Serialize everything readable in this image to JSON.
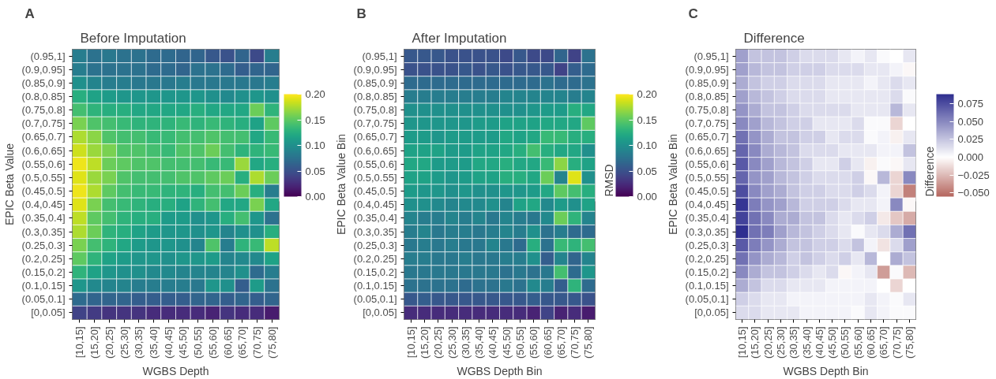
{
  "chart_data": [
    {
      "type": "heatmap",
      "title": "Before Imputation",
      "xlabel": "WGBS Depth",
      "ylabel": "EPIC Beta Value",
      "annotations": [
        "A"
      ],
      "categories": [
        "[10,15]",
        "(15,20]",
        "(20,25]",
        "(25,30]",
        "(30,35]",
        "(35,40]",
        "(40,45]",
        "(45,50]",
        "(50,55]",
        "(55,60]",
        "(60,65]",
        "(65,70]",
        "(70,75]",
        "(75,80]"
      ],
      "y_categories": [
        "(0.95,1]",
        "(0.9,0.95]",
        "(0.85,0.9]",
        "(0.8,0.85]",
        "(0.75,0.8]",
        "(0.7,0.75]",
        "(0.65,0.7]",
        "(0.6,0.65]",
        "(0.55,0.6]",
        "(0.5,0.55]",
        "(0.45,0.5]",
        "(0.4,0.45]",
        "(0.35,0.4]",
        "(0.3,0.35]",
        "(0.25,0.3]",
        "(0.2,0.25]",
        "(0.15,0.2]",
        "(0.1,0.15]",
        "(0.05,0.1]",
        "[0,0.05]"
      ],
      "clim": [
        0,
        0.2
      ],
      "cticks": [
        {
          "value": 0,
          "label": "0.00"
        },
        {
          "value": 0.05,
          "label": "0.05"
        },
        {
          "value": 0.1,
          "label": "0.10"
        },
        {
          "value": 0.15,
          "label": "0.15"
        },
        {
          "value": 0.2,
          "label": "0.20"
        }
      ],
      "cells": [
        [
          0.085,
          0.075,
          0.08,
          0.075,
          0.075,
          0.07,
          0.07,
          0.065,
          0.065,
          0.055,
          0.05,
          0.065,
          0.045,
          0.085
        ],
        [
          0.085,
          0.075,
          0.075,
          0.075,
          0.075,
          0.07,
          0.07,
          0.065,
          0.075,
          0.075,
          0.07,
          0.06,
          0.065,
          0.065
        ],
        [
          0.1,
          0.09,
          0.085,
          0.085,
          0.08,
          0.08,
          0.08,
          0.085,
          0.08,
          0.08,
          0.08,
          0.08,
          0.08,
          0.085
        ],
        [
          0.125,
          0.115,
          0.11,
          0.105,
          0.105,
          0.105,
          0.105,
          0.105,
          0.105,
          0.1,
          0.095,
          0.1,
          0.105,
          0.1
        ],
        [
          0.14,
          0.13,
          0.125,
          0.125,
          0.12,
          0.12,
          0.12,
          0.12,
          0.125,
          0.12,
          0.12,
          0.12,
          0.155,
          0.13
        ],
        [
          0.16,
          0.145,
          0.14,
          0.135,
          0.13,
          0.13,
          0.13,
          0.135,
          0.13,
          0.135,
          0.13,
          0.125,
          0.115,
          0.15
        ],
        [
          0.175,
          0.165,
          0.145,
          0.14,
          0.14,
          0.135,
          0.135,
          0.14,
          0.14,
          0.145,
          0.14,
          0.14,
          0.12,
          0.135
        ],
        [
          0.185,
          0.17,
          0.16,
          0.145,
          0.145,
          0.14,
          0.135,
          0.145,
          0.145,
          0.155,
          0.14,
          0.13,
          0.13,
          0.135
        ],
        [
          0.195,
          0.18,
          0.155,
          0.15,
          0.145,
          0.145,
          0.14,
          0.14,
          0.14,
          0.135,
          0.135,
          0.17,
          0.12,
          0.125
        ],
        [
          0.19,
          0.17,
          0.16,
          0.145,
          0.14,
          0.14,
          0.14,
          0.145,
          0.145,
          0.15,
          0.155,
          0.125,
          0.175,
          0.155
        ],
        [
          0.195,
          0.175,
          0.15,
          0.14,
          0.135,
          0.135,
          0.13,
          0.13,
          0.125,
          0.14,
          0.14,
          0.155,
          0.125,
          0.085
        ],
        [
          0.19,
          0.16,
          0.14,
          0.135,
          0.13,
          0.125,
          0.125,
          0.115,
          0.13,
          0.14,
          0.12,
          0.12,
          0.16,
          0.12
        ],
        [
          0.18,
          0.15,
          0.14,
          0.13,
          0.125,
          0.125,
          0.11,
          0.11,
          0.1,
          0.105,
          0.125,
          0.14,
          0.105,
          0.075
        ],
        [
          0.175,
          0.155,
          0.13,
          0.125,
          0.115,
          0.11,
          0.105,
          0.105,
          0.1,
          0.105,
          0.09,
          0.1,
          0.1,
          0.125
        ],
        [
          0.16,
          0.14,
          0.13,
          0.12,
          0.11,
          0.105,
          0.105,
          0.1,
          0.09,
          0.145,
          0.085,
          0.13,
          0.135,
          0.18
        ],
        [
          0.15,
          0.13,
          0.115,
          0.11,
          0.105,
          0.105,
          0.1,
          0.105,
          0.105,
          0.11,
          0.09,
          0.095,
          0.095,
          0.115
        ],
        [
          0.13,
          0.115,
          0.105,
          0.1,
          0.1,
          0.095,
          0.095,
          0.09,
          0.09,
          0.09,
          0.09,
          0.1,
          0.07,
          0.085
        ],
        [
          0.105,
          0.095,
          0.09,
          0.09,
          0.085,
          0.085,
          0.085,
          0.085,
          0.08,
          0.105,
          0.1,
          0.06,
          0.11,
          0.075
        ],
        [
          0.07,
          0.065,
          0.065,
          0.065,
          0.06,
          0.06,
          0.06,
          0.06,
          0.065,
          0.065,
          0.06,
          0.065,
          0.06,
          0.065
        ],
        [
          0.04,
          0.035,
          0.03,
          0.03,
          0.03,
          0.025,
          0.025,
          0.025,
          0.025,
          0.02,
          0.03,
          0.025,
          0.025,
          0.015
        ]
      ]
    },
    {
      "type": "heatmap",
      "title": "After Imputation",
      "xlabel": "WGBS Depth Bin",
      "ylabel": "EPIC Beta Value Bin",
      "annotations": [
        "B"
      ],
      "categories": [
        "[10,15]",
        "(15,20]",
        "(20,25]",
        "(25,30]",
        "(30,35]",
        "(35,40]",
        "(40,45]",
        "(45,50]",
        "(50,55]",
        "(55,60]",
        "(60,65]",
        "(65,70]",
        "(70,75]",
        "(75,80]"
      ],
      "y_categories": [
        "(0.95,1]",
        "(0.9,0.95]",
        "(0.85,0.9]",
        "(0.8,0.85]",
        "(0.75,0.8]",
        "(0.7,0.75]",
        "(0.65,0.7]",
        "(0.6,0.65]",
        "(0.55,0.6]",
        "(0.5,0.55]",
        "(0.45,0.5]",
        "(0.4,0.45]",
        "(0.35,0.4]",
        "(0.3,0.35]",
        "(0.25,0.3]",
        "(0.2,0.25]",
        "(0.15,0.2]",
        "(0.1,0.15]",
        "(0.05,0.1]",
        "[0,0.05]"
      ],
      "clim": [
        0,
        0.2
      ],
      "clabel": "RMSD",
      "cticks": [
        {
          "value": 0,
          "label": "0.00"
        },
        {
          "value": 0.05,
          "label": "0.05"
        },
        {
          "value": 0.1,
          "label": "0.10"
        },
        {
          "value": 0.15,
          "label": "0.15"
        },
        {
          "value": 0.2,
          "label": "0.20"
        }
      ],
      "cells": [
        [
          0.055,
          0.055,
          0.055,
          0.05,
          0.05,
          0.05,
          0.05,
          0.045,
          0.055,
          0.045,
          0.045,
          0.065,
          0.04,
          0.075
        ],
        [
          0.05,
          0.05,
          0.05,
          0.05,
          0.055,
          0.05,
          0.055,
          0.05,
          0.055,
          0.055,
          0.055,
          0.04,
          0.06,
          0.07
        ],
        [
          0.07,
          0.07,
          0.07,
          0.07,
          0.07,
          0.07,
          0.07,
          0.07,
          0.07,
          0.07,
          0.075,
          0.07,
          0.07,
          0.075
        ],
        [
          0.085,
          0.085,
          0.085,
          0.085,
          0.085,
          0.085,
          0.085,
          0.09,
          0.09,
          0.09,
          0.09,
          0.09,
          0.085,
          0.09
        ],
        [
          0.1,
          0.1,
          0.1,
          0.1,
          0.1,
          0.1,
          0.1,
          0.1,
          0.1,
          0.105,
          0.11,
          0.11,
          0.125,
          0.12
        ],
        [
          0.105,
          0.105,
          0.105,
          0.105,
          0.105,
          0.11,
          0.11,
          0.115,
          0.115,
          0.115,
          0.12,
          0.12,
          0.12,
          0.15
        ],
        [
          0.11,
          0.11,
          0.105,
          0.11,
          0.11,
          0.11,
          0.11,
          0.12,
          0.115,
          0.12,
          0.135,
          0.135,
          0.125,
          0.125
        ],
        [
          0.115,
          0.115,
          0.115,
          0.11,
          0.11,
          0.115,
          0.115,
          0.12,
          0.125,
          0.14,
          0.125,
          0.12,
          0.12,
          0.1
        ],
        [
          0.12,
          0.12,
          0.11,
          0.11,
          0.11,
          0.12,
          0.12,
          0.125,
          0.12,
          0.12,
          0.135,
          0.165,
          0.125,
          0.115
        ],
        [
          0.115,
          0.115,
          0.11,
          0.105,
          0.11,
          0.115,
          0.115,
          0.125,
          0.125,
          0.12,
          0.155,
          0.09,
          0.19,
          0.1
        ],
        [
          0.11,
          0.105,
          0.105,
          0.1,
          0.105,
          0.1,
          0.1,
          0.105,
          0.105,
          0.11,
          0.12,
          0.15,
          0.14,
          0.125
        ],
        [
          0.1,
          0.1,
          0.095,
          0.09,
          0.095,
          0.095,
          0.1,
          0.09,
          0.115,
          0.12,
          0.095,
          0.11,
          0.1,
          0.115
        ],
        [
          0.09,
          0.085,
          0.085,
          0.09,
          0.085,
          0.09,
          0.08,
          0.09,
          0.085,
          0.08,
          0.095,
          0.155,
          0.13,
          0.09
        ],
        [
          0.085,
          0.09,
          0.08,
          0.085,
          0.085,
          0.08,
          0.085,
          0.09,
          0.085,
          0.1,
          0.075,
          0.085,
          0.07,
          0.07
        ],
        [
          0.08,
          0.085,
          0.08,
          0.085,
          0.08,
          0.08,
          0.09,
          0.08,
          0.07,
          0.125,
          0.075,
          0.135,
          0.13,
          0.14
        ],
        [
          0.085,
          0.085,
          0.08,
          0.08,
          0.085,
          0.08,
          0.08,
          0.085,
          0.085,
          0.1,
          0.06,
          0.09,
          0.065,
          0.09
        ],
        [
          0.08,
          0.08,
          0.08,
          0.08,
          0.08,
          0.08,
          0.08,
          0.075,
          0.08,
          0.075,
          0.08,
          0.14,
          0.07,
          0.105
        ],
        [
          0.075,
          0.075,
          0.075,
          0.075,
          0.07,
          0.075,
          0.075,
          0.08,
          0.075,
          0.095,
          0.085,
          0.06,
          0.13,
          0.07
        ],
        [
          0.055,
          0.06,
          0.055,
          0.055,
          0.055,
          0.055,
          0.055,
          0.055,
          0.055,
          0.06,
          0.055,
          0.055,
          0.055,
          0.05
        ],
        [
          0.025,
          0.025,
          0.025,
          0.025,
          0.025,
          0.025,
          0.025,
          0.025,
          0.025,
          0.02,
          0.04,
          0.02,
          0.025,
          0.015
        ]
      ]
    },
    {
      "type": "heatmap",
      "title": "Difference",
      "xlabel": "WGBS Depth Bin",
      "ylabel": "EPIC Beta Value Bin",
      "annotations": [
        "C"
      ],
      "categories": [
        "[10,15]",
        "(15,20]",
        "(20,25]",
        "(25,30]",
        "(30,35]",
        "(35,40]",
        "(40,45]",
        "(45,50]",
        "(50,55]",
        "(55,60]",
        "(60,65]",
        "(65,70]",
        "(70,75]",
        "(75,80]"
      ],
      "y_categories": [
        "(0.95,1]",
        "(0.9,0.95]",
        "(0.85,0.9]",
        "(0.8,0.85]",
        "(0.75,0.8]",
        "(0.7,0.75]",
        "(0.65,0.7]",
        "(0.6,0.65]",
        "(0.55,0.6]",
        "(0.5,0.55]",
        "(0.45,0.5]",
        "(0.4,0.45]",
        "(0.35,0.4]",
        "(0.3,0.35]",
        "(0.25,0.3]",
        "(0.2,0.25]",
        "(0.15,0.2]",
        "(0.1,0.15]",
        "(0.05,0.1]",
        "[0,0.05]"
      ],
      "clim": [
        -0.055,
        0.088
      ],
      "clabel": "Difference",
      "cticks": [
        {
          "value": -0.05,
          "label": "−0.050"
        },
        {
          "value": -0.025,
          "label": "−0.025"
        },
        {
          "value": 0,
          "label": "0.000"
        },
        {
          "value": 0.025,
          "label": "0.025"
        },
        {
          "value": 0.05,
          "label": "0.050"
        },
        {
          "value": 0.075,
          "label": "0.075"
        }
      ],
      "cells": [
        [
          0.04,
          0.025,
          0.025,
          0.025,
          0.02,
          0.015,
          0.015,
          0.015,
          0.01,
          0.005,
          0.01,
          0.002,
          0,
          0.01
        ],
        [
          0.04,
          0.03,
          0.025,
          0.025,
          0.02,
          0.02,
          0.02,
          0.015,
          0.015,
          0.015,
          0.01,
          0.01,
          0.005,
          -0.003
        ],
        [
          0.035,
          0.025,
          0.02,
          0.02,
          0.015,
          0.015,
          0.015,
          0.01,
          0.01,
          0.01,
          0.005,
          0.01,
          0.015,
          0.01
        ],
        [
          0.04,
          0.03,
          0.025,
          0.02,
          0.015,
          0.015,
          0.015,
          0.01,
          0.01,
          0.01,
          0.01,
          0.01,
          0.015,
          0.002
        ],
        [
          0.045,
          0.035,
          0.025,
          0.025,
          0.02,
          0.015,
          0.015,
          0.015,
          0.015,
          0.01,
          0.01,
          0.01,
          0.03,
          0.01
        ],
        [
          0.05,
          0.04,
          0.03,
          0.025,
          0.02,
          0.02,
          0.01,
          0.01,
          0.01,
          0.015,
          0.002,
          0.002,
          -0.015,
          0
        ],
        [
          0.06,
          0.045,
          0.035,
          0.025,
          0.025,
          0.02,
          0.02,
          0.01,
          0.015,
          0.015,
          0.002,
          0.005,
          -0.005,
          0.01
        ],
        [
          0.065,
          0.05,
          0.035,
          0.03,
          0.025,
          0.015,
          0.015,
          0.015,
          0.01,
          0.01,
          0.01,
          0.005,
          0.005,
          0.025
        ],
        [
          0.07,
          0.05,
          0.04,
          0.03,
          0.025,
          0.02,
          0.01,
          0.01,
          0.02,
          0.01,
          -0.005,
          0.002,
          -0.003,
          0.01
        ],
        [
          0.065,
          0.045,
          0.04,
          0.03,
          0.025,
          0.02,
          0.015,
          0.015,
          0.015,
          0.02,
          -0.003,
          0.03,
          -0.015,
          0.05
        ],
        [
          0.075,
          0.05,
          0.04,
          0.035,
          0.025,
          0.02,
          0.02,
          0.015,
          0.015,
          0.02,
          0.015,
          0.005,
          -0.015,
          -0.045
        ],
        [
          0.085,
          0.055,
          0.045,
          0.04,
          0.03,
          0.02,
          0.02,
          0.02,
          0.015,
          0.01,
          0.01,
          0.005,
          0.05,
          -0.003
        ],
        [
          0.08,
          0.06,
          0.05,
          0.035,
          0.035,
          0.025,
          0.025,
          0.015,
          0.01,
          0.015,
          0.02,
          -0.008,
          -0.02,
          -0.03
        ],
        [
          0.088,
          0.06,
          0.055,
          0.04,
          0.03,
          0.025,
          0.02,
          0.015,
          0.01,
          0.002,
          0.01,
          0.015,
          0.035,
          0.06
        ],
        [
          0.07,
          0.055,
          0.045,
          0.035,
          0.025,
          0.025,
          0.02,
          0.02,
          0.015,
          0.025,
          0.005,
          -0.01,
          0.015,
          0.04
        ],
        [
          0.06,
          0.045,
          0.035,
          0.03,
          0.02,
          0.025,
          0.02,
          0.015,
          0.02,
          0.01,
          0.03,
          0,
          0.035,
          0.025
        ],
        [
          0.05,
          0.035,
          0.025,
          0.025,
          0.02,
          0.015,
          0.01,
          0.015,
          -0.003,
          0.005,
          0.01,
          -0.035,
          0.002,
          -0.025
        ],
        [
          0.035,
          0.025,
          0.015,
          0.015,
          0.01,
          0.01,
          0.01,
          0.005,
          0.005,
          0.005,
          0.005,
          0,
          -0.015,
          0
        ],
        [
          0.02,
          0.015,
          0.01,
          0.01,
          0.005,
          0.005,
          0.005,
          0.005,
          0.005,
          0.005,
          0.01,
          0.005,
          0.002,
          0.01
        ],
        [
          0.015,
          0.015,
          0.01,
          0.01,
          0.01,
          0.005,
          0.005,
          0.005,
          0.005,
          0.002,
          0.01,
          0.005,
          0.002,
          0.002
        ]
      ]
    }
  ]
}
